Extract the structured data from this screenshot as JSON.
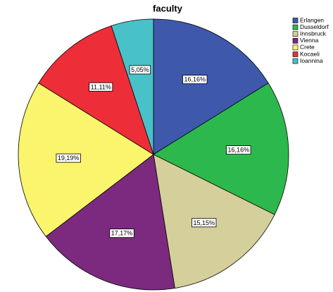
{
  "chart_data": {
    "type": "pie",
    "title": "faculty",
    "categories": [
      "Erlangen",
      "Dusseldorf",
      "Innsbruck",
      "Vienna",
      "Crete",
      "Kocaeli",
      "Ioannina"
    ],
    "values": [
      16.16,
      16.16,
      15.15,
      17.17,
      19.19,
      11.11,
      5.05
    ],
    "value_labels": [
      "16,16%",
      "16,16%",
      "15,15%",
      "17,17%",
      "19,19%",
      "11,11%",
      "5,05%"
    ],
    "colors": [
      "#3e58ac",
      "#2db84d",
      "#d4cf9b",
      "#7b2a7f",
      "#fbf46d",
      "#ed2e38",
      "#48c1c8"
    ],
    "legend": "top-right"
  }
}
